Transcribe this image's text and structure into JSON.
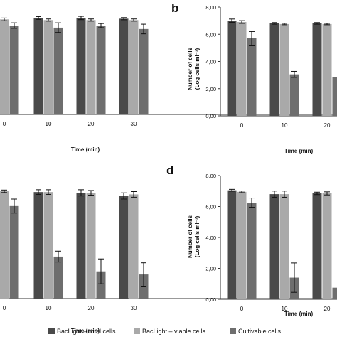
{
  "colors": {
    "total": "#4a4a4a",
    "viable": "#a9a9a9",
    "cultivable": "#6e6e6e",
    "axis": "#333333",
    "errorbar": "#111111"
  },
  "legend": [
    {
      "label": "BacLight – total cells",
      "color": "#4a4a4a"
    },
    {
      "label": "BacLight – viable cells",
      "color": "#a9a9a9"
    },
    {
      "label": "Cultivable cells",
      "color": "#6e6e6e"
    }
  ],
  "chart_data": [
    {
      "panel": "a",
      "type": "bar",
      "letter": "",
      "categories": [
        "0",
        "10",
        "20",
        "30"
      ],
      "xlabel": "Time (min)",
      "ylabel_line1": "",
      "ylabel_line2": "",
      "ylim": [
        0,
        8
      ],
      "yticks": [],
      "ytick_labels": [],
      "series": [
        {
          "name": "BacLight – total cells",
          "values": [
            7.05,
            7.0,
            7.0,
            6.95
          ],
          "errors": [
            0.12,
            0.1,
            0.12,
            0.08
          ]
        },
        {
          "name": "BacLight – viable cells",
          "values": [
            6.9,
            6.85,
            6.85,
            6.85
          ],
          "errors": [
            0.1,
            0.08,
            0.08,
            0.08
          ]
        },
        {
          "name": "Cultivable cells",
          "values": [
            6.45,
            6.3,
            6.45,
            6.2
          ],
          "errors": [
            0.2,
            0.35,
            0.15,
            0.35
          ]
        }
      ]
    },
    {
      "panel": "b",
      "type": "bar",
      "letter": "b",
      "categories": [
        "0",
        "10",
        "20"
      ],
      "xlabel": "Time (min)",
      "ylabel_line1": "Number of cells",
      "ylabel_line2": "(Log cells ml⁻¹)",
      "ylim": [
        0,
        8
      ],
      "yticks": [
        0,
        2,
        4,
        6,
        8
      ],
      "ytick_labels": [
        "0,00",
        "2,00",
        "4,00",
        "6,00",
        "8,00"
      ],
      "series": [
        {
          "name": "BacLight – total cells",
          "values": [
            7.0,
            6.8,
            6.8
          ],
          "errors": [
            0.12,
            0.06,
            0.06
          ]
        },
        {
          "name": "BacLight – viable cells",
          "values": [
            6.9,
            6.75,
            6.75
          ],
          "errors": [
            0.1,
            0.05,
            0.05
          ]
        },
        {
          "name": "Cultivable cells",
          "values": [
            5.7,
            3.05,
            2.85
          ],
          "errors": [
            0.5,
            0.22,
            0.0
          ]
        }
      ]
    },
    {
      "panel": "c",
      "type": "bar",
      "letter": "",
      "categories": [
        "0",
        "10",
        "20",
        "30"
      ],
      "xlabel": "Time (min)",
      "ylabel_line1": "",
      "ylabel_line2": "",
      "ylim": [
        0,
        8
      ],
      "yticks": [],
      "ytick_labels": [],
      "series": [
        {
          "name": "BacLight – total cells",
          "values": [
            6.95,
            6.85,
            6.8,
            6.6
          ],
          "errors": [
            0.1,
            0.15,
            0.2,
            0.2
          ]
        },
        {
          "name": "BacLight – viable cells",
          "values": [
            6.9,
            6.85,
            6.8,
            6.7
          ],
          "errors": [
            0.08,
            0.15,
            0.15,
            0.18
          ]
        },
        {
          "name": "Cultivable cells",
          "values": [
            5.95,
            2.7,
            1.75,
            1.55
          ],
          "errors": [
            0.45,
            0.35,
            0.8,
            0.75
          ]
        }
      ]
    },
    {
      "panel": "d",
      "type": "bar",
      "letter": "d",
      "categories": [
        "0",
        "10",
        "20"
      ],
      "xlabel": "Time (min)",
      "ylabel_line1": "Number of cells",
      "ylabel_line2": "(Log cells ml⁻¹)",
      "ylim": [
        0,
        8
      ],
      "yticks": [
        0,
        2,
        4,
        6,
        8
      ],
      "ytick_labels": [
        "0,00",
        "2,00",
        "4,00",
        "6,00",
        "8,00"
      ],
      "series": [
        {
          "name": "BacLight – total cells",
          "values": [
            7.05,
            6.8,
            6.85
          ],
          "errors": [
            0.06,
            0.2,
            0.08
          ]
        },
        {
          "name": "BacLight – viable cells",
          "values": [
            6.95,
            6.8,
            6.85
          ],
          "errors": [
            0.05,
            0.2,
            0.1
          ]
        },
        {
          "name": "Cultivable cells",
          "values": [
            6.25,
            1.4,
            0.75
          ],
          "errors": [
            0.3,
            0.95,
            0.0
          ]
        }
      ]
    }
  ]
}
